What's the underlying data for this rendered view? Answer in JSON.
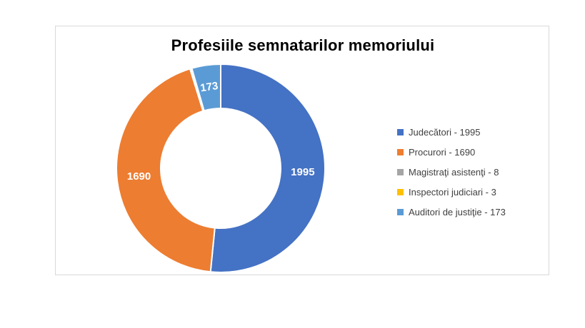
{
  "chart_data": {
    "type": "pie",
    "variant": "donut",
    "title": "Profesiile semnatarilor memoriului",
    "categories": [
      "Judecători",
      "Procurori",
      "Magistraţi asistenţi",
      "Inspectori judiciari",
      "Auditori de justiţie"
    ],
    "values": [
      1995,
      1690,
      8,
      3,
      173
    ],
    "colors": [
      "#4472c4",
      "#ed7d31",
      "#a5a5a5",
      "#ffc000",
      "#5b9bd5"
    ],
    "data_labels": [
      "1995",
      "1690",
      "",
      "",
      "173"
    ],
    "legend_labels": [
      "Judecători - 1995",
      "Procurori - 1690",
      "Magistraţi asistenţi - 8",
      "Inspectori judiciari - 3",
      "Auditori de justiţie - 173"
    ],
    "legend_position": "right"
  }
}
